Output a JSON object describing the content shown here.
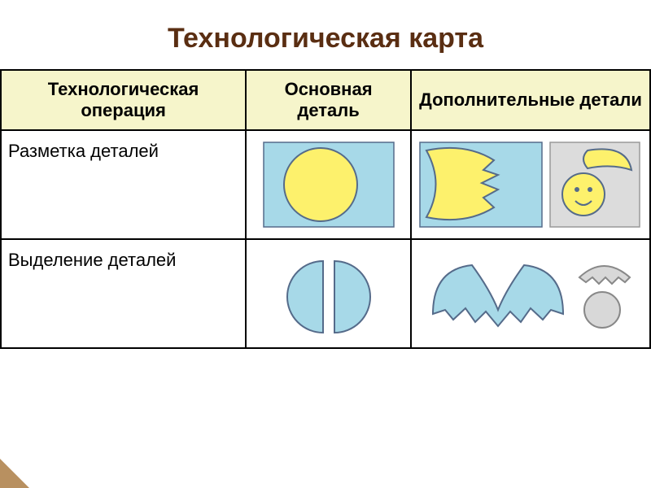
{
  "title": "Технологическая карта",
  "title_color": "#5a2e12",
  "headers": {
    "col1": "Технологическая операция",
    "col2": "Основная деталь",
    "col3": "Дополнительные детали"
  },
  "header_bg": "#f6f5cb",
  "rows": {
    "r1_label": "Разметка  деталей",
    "r2_label": "Выделение  деталей"
  },
  "col_widths": {
    "c1": 260,
    "c2": 220,
    "c3": 320
  },
  "row_heights": {
    "h": 40,
    "r1": 150,
    "r2": 150
  },
  "colors": {
    "paper_blue": "#a7d9e8",
    "paper_grey": "#dcdcdc",
    "yellow": "#fdf16c",
    "blue_piece": "#a7d9e8",
    "grey_piece": "#d8d8d8",
    "stroke": "#556b8a",
    "black": "#000000"
  },
  "corner_color": "#b89060"
}
